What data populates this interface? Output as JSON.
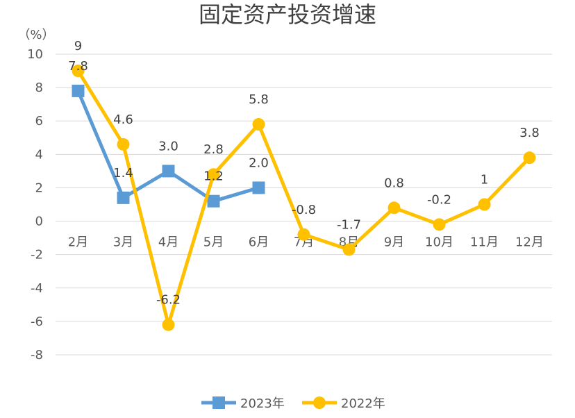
{
  "chart_data": {
    "type": "line",
    "title": "固定资产投资增速",
    "ylabel": "（%）",
    "xlabel": "",
    "categories": [
      "2月",
      "3月",
      "4月",
      "5月",
      "6月",
      "7月",
      "8月",
      "9月",
      "10月",
      "11月",
      "12月"
    ],
    "ylim": [
      -8,
      10
    ],
    "yticks": [
      10,
      8,
      6,
      4,
      2,
      0,
      -2,
      -4,
      -6,
      -8
    ],
    "grid": true,
    "legend": "bottom-center",
    "series": [
      {
        "name": "2023年",
        "color": "#5b9bd5",
        "marker": "square",
        "values": [
          7.8,
          1.4,
          3.0,
          1.2,
          2.0,
          null,
          null,
          null,
          null,
          null,
          null
        ],
        "labels": [
          "7.8",
          "1.4",
          "3.0",
          "1.2",
          "2.0",
          null,
          null,
          null,
          null,
          null,
          null
        ]
      },
      {
        "name": "2022年",
        "color": "#ffc000",
        "marker": "circle",
        "values": [
          9,
          4.6,
          -6.2,
          2.8,
          5.8,
          -0.8,
          -1.7,
          0.8,
          -0.2,
          1,
          3.8
        ],
        "labels": [
          "9",
          "4.6",
          "-6.2",
          "2.8",
          "5.8",
          "-0.8",
          "-1.7",
          "0.8",
          "-0.2",
          "1",
          "3.8"
        ]
      }
    ]
  }
}
